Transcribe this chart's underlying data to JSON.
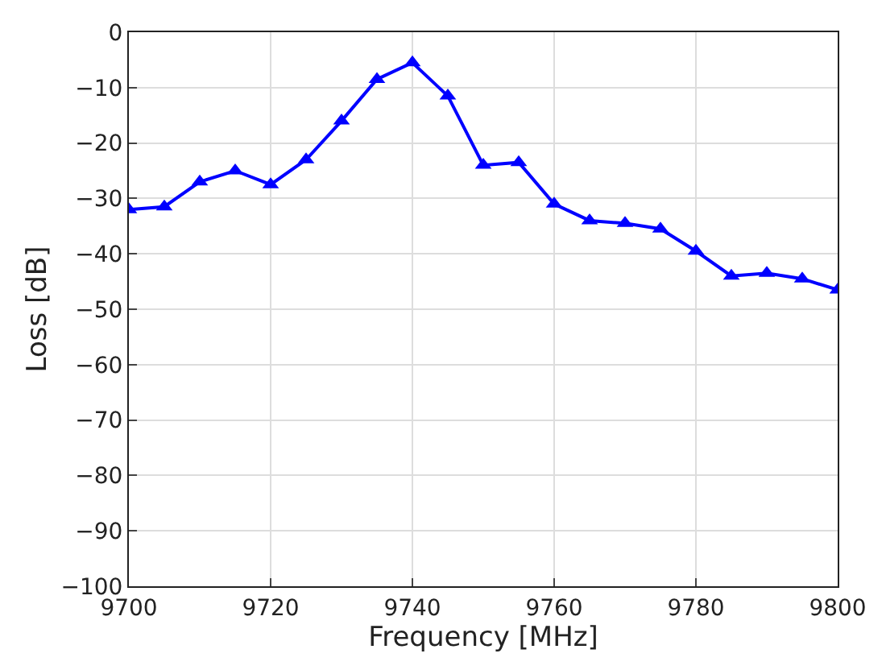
{
  "chart_data": {
    "type": "line",
    "xlabel": "Frequency [MHz]",
    "ylabel": "Loss [dB]",
    "x": [
      9700,
      9705,
      9710,
      9715,
      9720,
      9725,
      9730,
      9735,
      9740,
      9745,
      9750,
      9755,
      9760,
      9765,
      9770,
      9775,
      9780,
      9785,
      9790,
      9795,
      9800
    ],
    "series": [
      {
        "color": "#0000ff",
        "values": [
          -32,
          -31.5,
          -27,
          -25,
          -27.5,
          -23,
          -16,
          -8.5,
          -5.5,
          -11.5,
          -24,
          -23.5,
          -31,
          -34,
          -34.5,
          -35.5,
          -39.5,
          -44,
          -43.5,
          -44.5,
          -46.5
        ]
      }
    ],
    "xlim": [
      9700,
      9800
    ],
    "xticks": [
      9700,
      9720,
      9740,
      9760,
      9780,
      9800
    ],
    "ylim": [
      -100,
      0
    ],
    "yticks": [
      -100,
      -90,
      -80,
      -70,
      -60,
      -50,
      -40,
      -30,
      -20,
      -10,
      0
    ],
    "grid": true,
    "marker": "triangle",
    "line_style": "solid",
    "legend": false
  }
}
